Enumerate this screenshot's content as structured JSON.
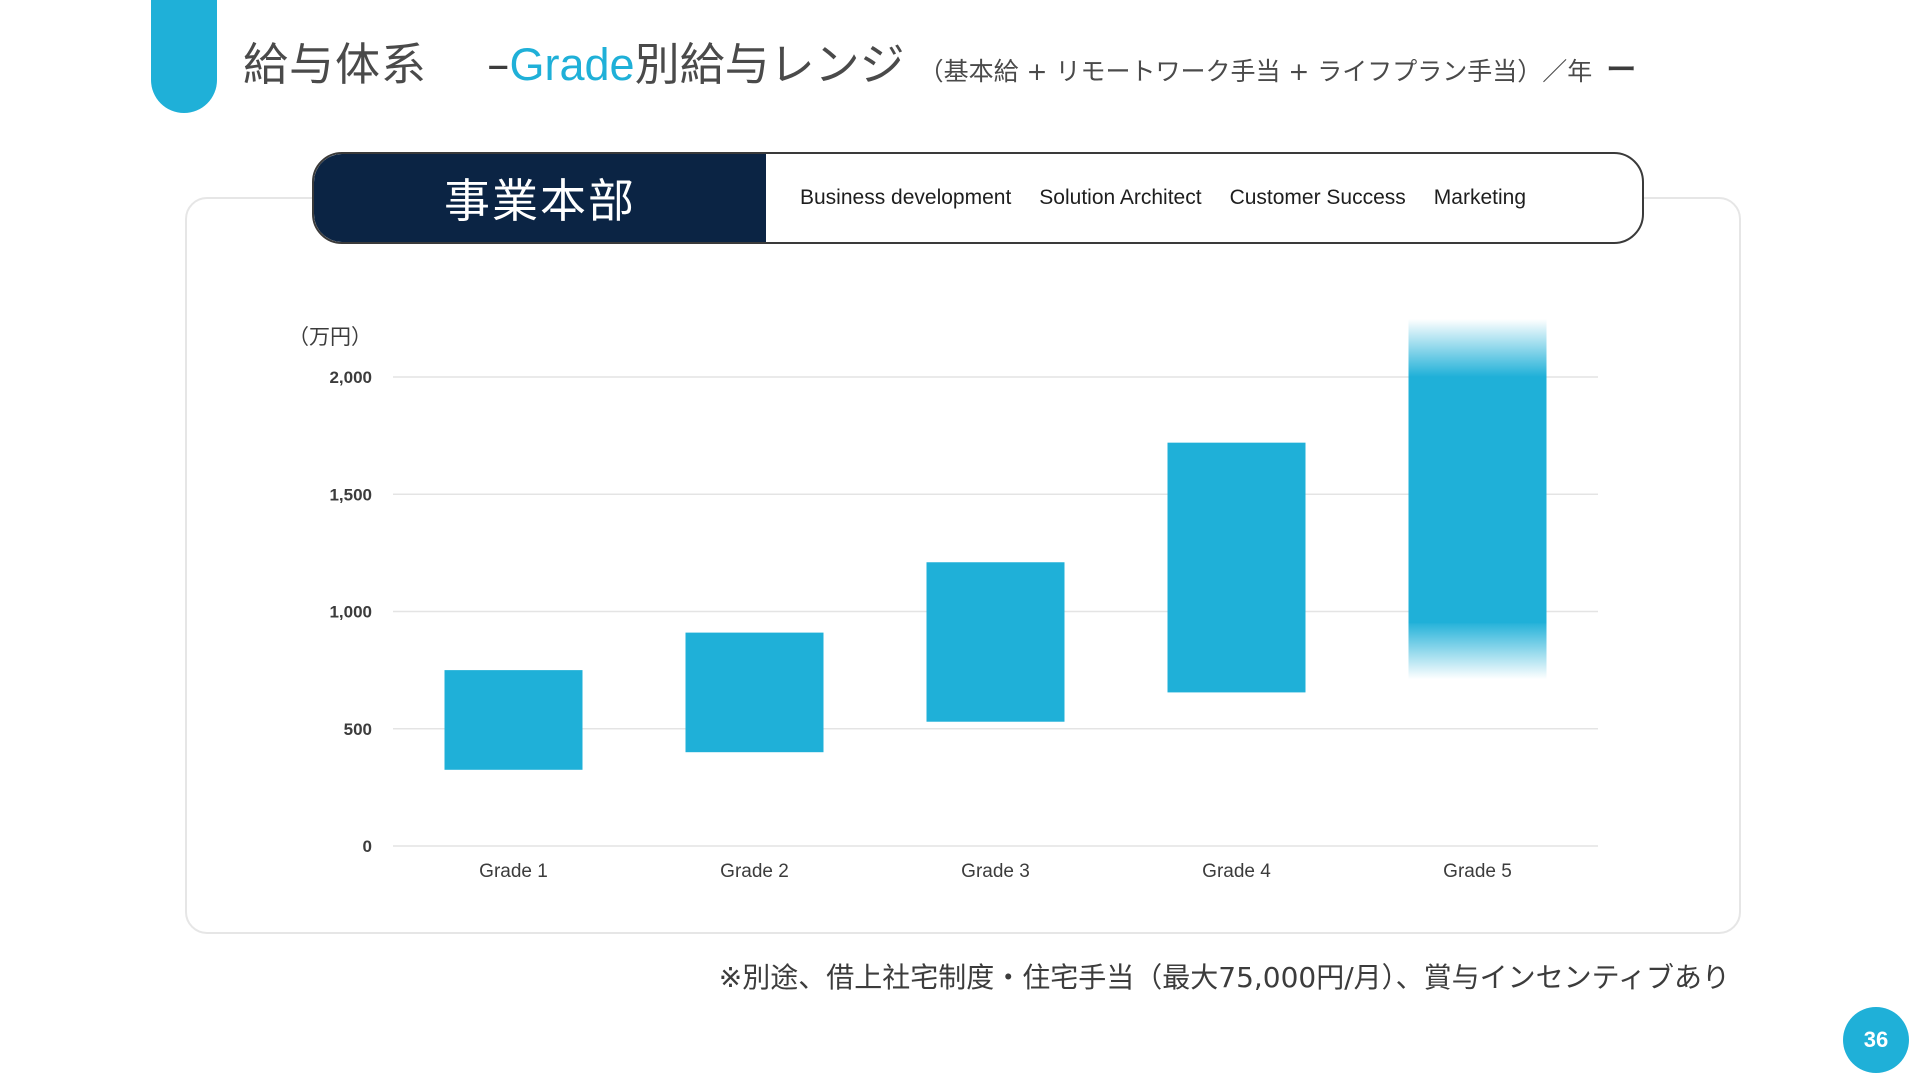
{
  "header": {
    "title_main": "給与体系",
    "title_dash": "–",
    "title_grade": "Grade",
    "title_rest": "別給与レンジ",
    "title_sub": "（基本給 + リモートワーク手当 + ライフプラン手当）／年",
    "title_end": "ー"
  },
  "department": {
    "name": "事業本部",
    "roles": [
      "Business development",
      "Solution Architect",
      "Customer Success",
      "Marketing"
    ]
  },
  "chart_data": {
    "type": "bar",
    "title": "",
    "xlabel": "",
    "ylabel": "（万円）",
    "ylim": [
      0,
      2000
    ],
    "yticks": [
      0,
      500,
      1000,
      1500,
      2000
    ],
    "ytick_labels": [
      "0",
      "500",
      "1,000",
      "1,500",
      "2,000"
    ],
    "grid": true,
    "categories": [
      "Grade 1",
      "Grade 2",
      "Grade 3",
      "Grade 4",
      "Grade 5"
    ],
    "series": [
      {
        "low": [
          325,
          400,
          530,
          655,
          950
        ],
        "high": [
          750,
          910,
          1210,
          1720,
          2000
        ],
        "open_ended": [
          false,
          false,
          false,
          false,
          true
        ]
      }
    ],
    "colors": {
      "bar": "#1fb0d8",
      "grid": "#e4e4e4",
      "axis_text": "#3c3c3c"
    }
  },
  "footnote": "※別途、借上社宅制度・住宅手当（最大75,000円/月）、賞与インセンティブあり",
  "page_number": "36",
  "colors": {
    "accent": "#1fb0d8",
    "navy": "#0b2444"
  }
}
